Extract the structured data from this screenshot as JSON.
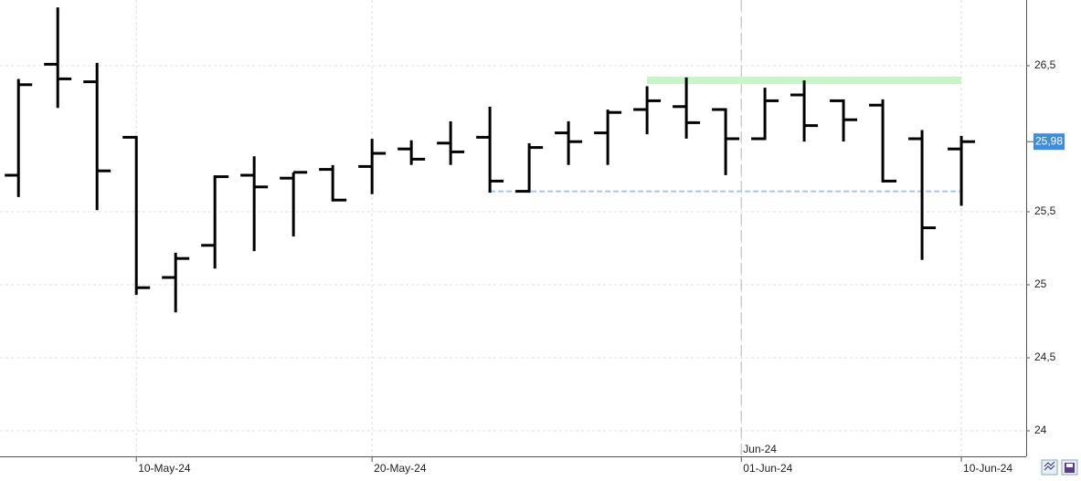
{
  "chart_data": {
    "type": "ohlc",
    "x": [
      0,
      1,
      2,
      3,
      4,
      5,
      6,
      7,
      8,
      9,
      10,
      11,
      12,
      13,
      14,
      15,
      16,
      17,
      18,
      19,
      20,
      21,
      22,
      23,
      24
    ],
    "open": [
      25.75,
      26.51,
      26.39,
      26.01,
      25.05,
      25.27,
      25.75,
      25.73,
      25.79,
      25.81,
      25.93,
      25.97,
      26.01,
      25.64,
      26.04,
      26.04,
      26.2,
      26.22,
      26.2,
      26.0,
      26.3,
      26.26,
      26.23,
      26.0,
      25.93
    ],
    "high": [
      26.4,
      26.89,
      26.51,
      26.01,
      25.21,
      25.74,
      25.87,
      25.76,
      25.81,
      25.99,
      25.98,
      26.11,
      26.21,
      25.96,
      26.11,
      26.19,
      26.35,
      26.41,
      26.2,
      26.34,
      26.39,
      26.26,
      26.26,
      26.05,
      26.01
    ],
    "low": [
      25.61,
      26.22,
      25.52,
      24.94,
      24.82,
      25.12,
      25.24,
      25.34,
      25.58,
      25.63,
      25.83,
      25.83,
      25.64,
      25.64,
      25.83,
      25.83,
      26.04,
      26.01,
      25.76,
      26.0,
      25.99,
      25.99,
      25.71,
      25.18,
      25.55
    ],
    "close": [
      26.37,
      26.41,
      25.78,
      24.98,
      25.18,
      25.74,
      25.67,
      25.77,
      25.58,
      25.9,
      25.86,
      25.91,
      25.71,
      25.94,
      25.98,
      26.18,
      26.26,
      26.11,
      26.0,
      26.26,
      26.09,
      26.13,
      25.71,
      25.39,
      25.98
    ],
    "color": "#000000",
    "xlim": [
      -0.47,
      25.65
    ],
    "xticks": [
      {
        "value": 3,
        "label": "10-May-24"
      },
      {
        "value": 9,
        "label": "20-May-24"
      },
      {
        "value": 18.4,
        "label": "01-Jun-24"
      },
      {
        "value": 24,
        "label": "10-Jun-24"
      }
    ],
    "ylim": [
      23.825,
      26.95
    ],
    "yticks": [
      24,
      {
        "value": 24.5,
        "label": "24,5"
      },
      25,
      {
        "value": 25.5,
        "label": "25,5"
      },
      {
        "value": 26.5,
        "label": "26,5"
      }
    ],
    "grid": true,
    "month_marker": {
      "value": 18.4,
      "label": "Jun-24"
    },
    "last_price": {
      "value": 25.98,
      "label": "25,98",
      "color": "#3d8ee0"
    },
    "levels": [
      {
        "x0": 16,
        "x1": 24,
        "value": 26.4,
        "color": "#c8f5c8"
      },
      {
        "x0": 12,
        "x1": 24,
        "value": 25.64,
        "color": "#a6c8e8"
      }
    ]
  }
}
